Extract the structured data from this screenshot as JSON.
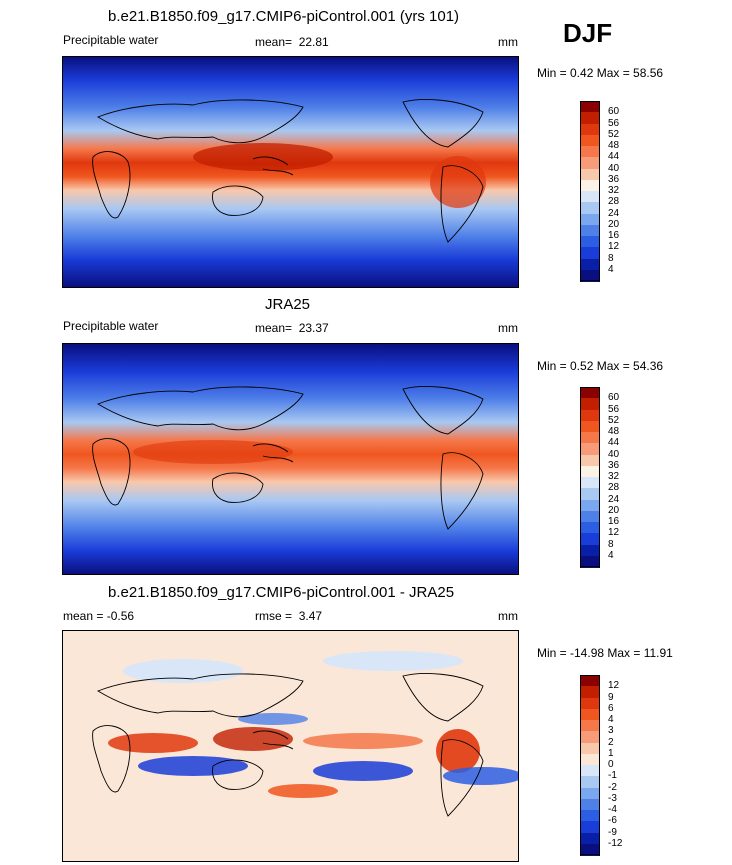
{
  "season": "DJF",
  "panels": [
    {
      "title": "b.e21.B1850.f09_g17.CMIP6-piControl.001 (yrs 101)",
      "left_label": "Precipitable water",
      "stat_label": "mean=",
      "stat_value": "22.81",
      "units": "mm",
      "minmax": "Min =   0.42 Max =  58.56",
      "map_kind": "field"
    },
    {
      "title": "JRA25",
      "left_label": "Precipitable water",
      "stat_label": "mean=",
      "stat_value": "23.37",
      "units": "mm",
      "minmax": "Min =   0.52 Max =  54.36",
      "map_kind": "field"
    },
    {
      "title": "b.e21.B1850.f09_g17.CMIP6-piControl.001 - JRA25",
      "left_label": "mean =   -0.56",
      "stat_label": "rmse =",
      "stat_value": "3.47",
      "units": "mm",
      "minmax": "Min = -14.98 Max =  11.91",
      "map_kind": "diff"
    }
  ],
  "colorbar_field": {
    "labels": [
      "60",
      "56",
      "52",
      "48",
      "44",
      "40",
      "36",
      "32",
      "28",
      "24",
      "20",
      "16",
      "12",
      "8",
      "4"
    ],
    "colors": [
      "#8b0000",
      "#c11f00",
      "#e0380e",
      "#f0561f",
      "#f5774a",
      "#f79c78",
      "#f8c8ad",
      "#fbf3e6",
      "#d8e6f7",
      "#a9c8f2",
      "#7ba7ee",
      "#4f80e8",
      "#2c5ee4",
      "#1a3cd8",
      "#0a1fa8",
      "#0a0f80"
    ]
  },
  "colorbar_diff": {
    "labels": [
      "12",
      "9",
      "6",
      "4",
      "3",
      "2",
      "1",
      "0",
      "-1",
      "-2",
      "-3",
      "-4",
      "-6",
      "-9",
      "-12"
    ],
    "colors": [
      "#8b0000",
      "#c11f00",
      "#e0380e",
      "#f0561f",
      "#f5774a",
      "#f79c78",
      "#f8c8ad",
      "#fbe7d8",
      "#d8e6f7",
      "#a9c8f2",
      "#7ba7ee",
      "#4f80e8",
      "#2c5ee4",
      "#1a3cd8",
      "#0a1fa8",
      "#0a0f80"
    ]
  }
}
